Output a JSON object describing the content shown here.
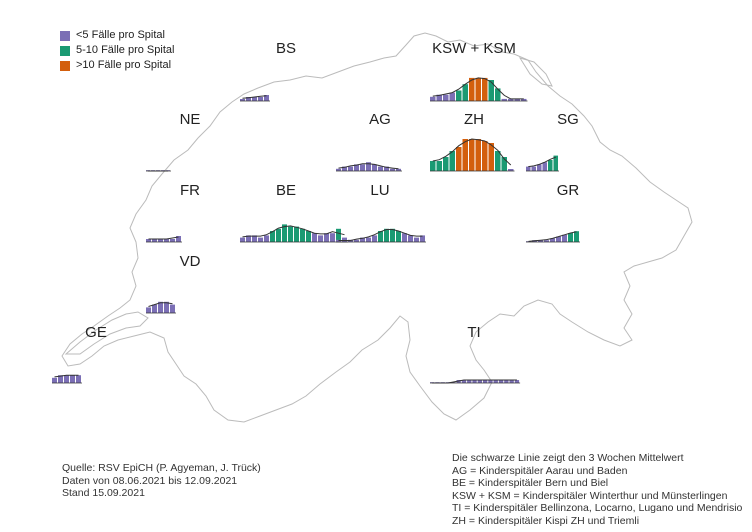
{
  "colors": {
    "low": "#7b6fb5",
    "mid": "#1a9a73",
    "high": "#d35f0d",
    "border": "#bbbbbb",
    "trend": "#333333"
  },
  "legend": [
    {
      "key": "low",
      "label": "<5 Fälle pro Spital"
    },
    {
      "key": "mid",
      "label": "5-10 Fälle pro Spital"
    },
    {
      "key": "high",
      "label": ">10 Fälle pro Spital"
    }
  ],
  "source": [
    "Quelle: RSV EpiCH (P. Agyeman, J. Trück)",
    "Daten von 08.06.2021 bis 12.09.2021",
    "Stand 15.09.2021"
  ],
  "notes": [
    "Die schwarze Linie zeigt den 3 Wochen Mittelwert",
    "AG = Kinderspitäler Aarau und Baden",
    "BE = Kinderspitäler Bern und Biel",
    "KSW + KSM = Kinderspitäler Winterthur und Münsterlingen",
    "TI = Kinderspitäler Bellinzona, Locarno, Lugano und Mendrisio",
    "ZH = Kinderspitäler Kispi ZH und Triemli"
  ],
  "regions": [
    {
      "name": "BS",
      "values": [
        1,
        2,
        2,
        2,
        3
      ]
    },
    {
      "name": "KSW + KSM",
      "values": [
        2,
        3,
        3,
        4,
        5,
        8,
        11,
        11,
        11,
        10,
        6,
        1,
        1,
        1,
        1
      ]
    },
    {
      "name": "NE",
      "values": [
        0,
        0,
        0,
        0,
        0
      ]
    },
    {
      "name": "AG",
      "values": [
        1,
        2,
        2,
        3,
        3,
        4,
        3,
        2,
        2,
        1,
        1
      ]
    },
    {
      "name": "ZH",
      "values": [
        5,
        5,
        7,
        10,
        12,
        16,
        16,
        16,
        15,
        14,
        10,
        7,
        1
      ]
    },
    {
      "name": "SG",
      "values": [
        2,
        2,
        3,
        4,
        5,
        7
      ]
    },
    {
      "name": "FR",
      "values": [
        1,
        1,
        1,
        1,
        1,
        2
      ]
    },
    {
      "name": "BE",
      "values": [
        2,
        3,
        3,
        2,
        3,
        5,
        6,
        8,
        7,
        7,
        6,
        5,
        4,
        3,
        4,
        4,
        6,
        2
      ]
    },
    {
      "name": "LU",
      "values": [
        1,
        0,
        1,
        1,
        2,
        2,
        3,
        5,
        6,
        6,
        5,
        4,
        3,
        2,
        3
      ]
    },
    {
      "name": "GR",
      "values": [
        0,
        1,
        1,
        1,
        2,
        3,
        4,
        5,
        6
      ]
    },
    {
      "name": "VD",
      "values": [
        2,
        3,
        4,
        4,
        3
      ]
    },
    {
      "name": "GE",
      "values": [
        2,
        3,
        3,
        3,
        3
      ]
    },
    {
      "name": "TI",
      "values": [
        0,
        0,
        0,
        0,
        0,
        1,
        1,
        1,
        1,
        1,
        1,
        1,
        1,
        1,
        1,
        1,
        1
      ]
    }
  ]
}
